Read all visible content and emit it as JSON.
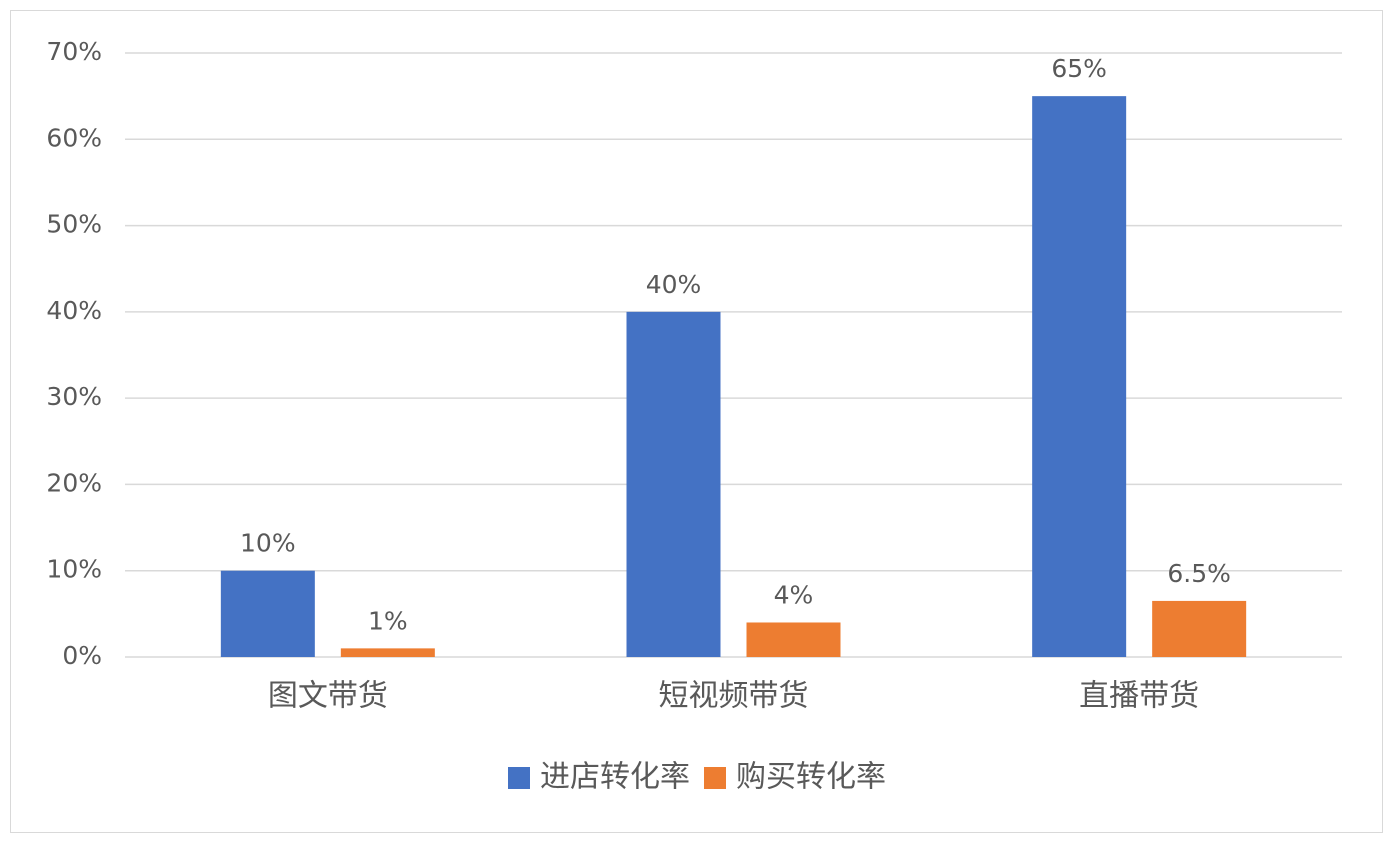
{
  "chart_data": {
    "type": "bar",
    "categories": [
      "图文带货",
      "短视频带货",
      "直播带货"
    ],
    "series": [
      {
        "name": "进店转化率",
        "color": "#4472c4",
        "values": [
          10,
          40,
          65
        ],
        "value_labels": [
          "10%",
          "40%",
          "65%"
        ]
      },
      {
        "name": "购买转化率",
        "color": "#ed7d31",
        "values": [
          1,
          4,
          6.5
        ],
        "value_labels": [
          "1%",
          "4%",
          "6.5%"
        ]
      }
    ],
    "ylim": [
      0,
      70
    ],
    "yticks": [
      {
        "value": 0,
        "label": "0%"
      },
      {
        "value": 10,
        "label": "10%"
      },
      {
        "value": 20,
        "label": "20%"
      },
      {
        "value": 30,
        "label": "30%"
      },
      {
        "value": 40,
        "label": "40%"
      },
      {
        "value": 50,
        "label": "50%"
      },
      {
        "value": 60,
        "label": "60%"
      },
      {
        "value": 70,
        "label": "70%"
      }
    ],
    "grid": true,
    "legend": "bottom"
  }
}
